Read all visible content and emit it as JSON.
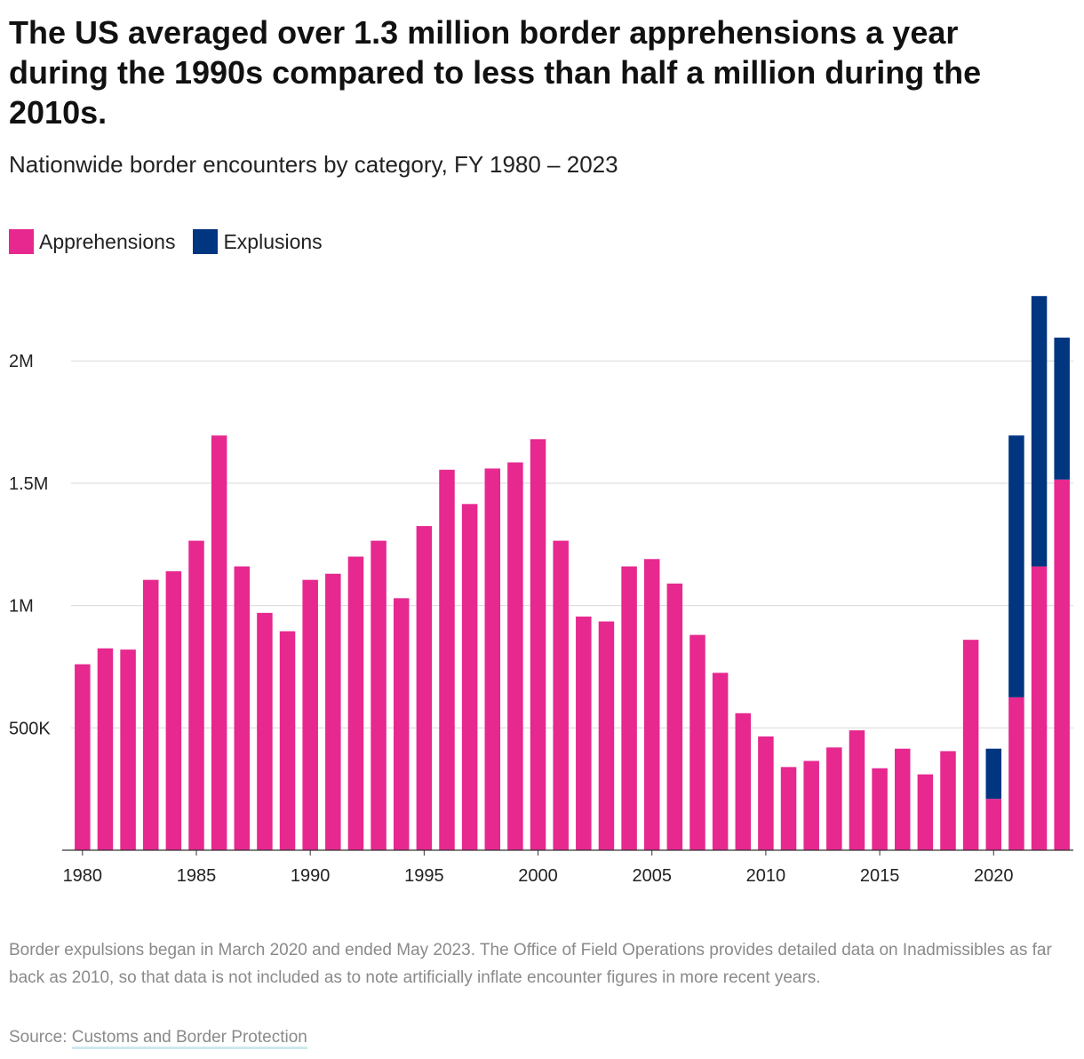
{
  "title": "The US averaged over 1.3 million border apprehensions a year during the 1990s compared to less than half a million during the 2010s.",
  "subtitle": "Nationwide border encounters by category, FY 1980 – 2023",
  "legend": [
    {
      "label": "Apprehensions",
      "color": "#e6288f"
    },
    {
      "label": "Explusions",
      "color": "#003580"
    }
  ],
  "footnote": "Border expulsions began in March 2020 and ended May 2023. The Office of Field Operations provides detailed data on Inadmissibles as far back as 2010, so that data is not included as to note artificially inflate encounter figures in more recent years.",
  "source": {
    "prefix": "Source: ",
    "link_text": "Customs and Border Protection"
  },
  "chart_data": {
    "type": "bar",
    "stacked": true,
    "title": "Nationwide border encounters by category, FY 1980 – 2023",
    "xlabel": "",
    "ylabel": "",
    "ylim": [
      0,
      2300000
    ],
    "yticks": [
      {
        "value": 500000,
        "label": "500K"
      },
      {
        "value": 1000000,
        "label": "1M"
      },
      {
        "value": 1500000,
        "label": "1.5M"
      },
      {
        "value": 2000000,
        "label": "2M"
      }
    ],
    "xticks": [
      "1980",
      "1985",
      "1990",
      "1995",
      "2000",
      "2005",
      "2010",
      "2015",
      "2020"
    ],
    "grid": true,
    "legend_position": "top-left",
    "categories": [
      "1980",
      "1981",
      "1982",
      "1983",
      "1984",
      "1985",
      "1986",
      "1987",
      "1988",
      "1989",
      "1990",
      "1991",
      "1992",
      "1993",
      "1994",
      "1995",
      "1996",
      "1997",
      "1998",
      "1999",
      "2000",
      "2001",
      "2002",
      "2003",
      "2004",
      "2005",
      "2006",
      "2007",
      "2008",
      "2009",
      "2010",
      "2011",
      "2012",
      "2013",
      "2014",
      "2015",
      "2016",
      "2017",
      "2018",
      "2019",
      "2020",
      "2021",
      "2022",
      "2023"
    ],
    "series": [
      {
        "name": "Apprehensions",
        "color": "#e6288f",
        "values": [
          760000,
          825000,
          820000,
          1105000,
          1140000,
          1265000,
          1695000,
          1160000,
          970000,
          895000,
          1105000,
          1130000,
          1200000,
          1265000,
          1030000,
          1325000,
          1555000,
          1415000,
          1560000,
          1585000,
          1680000,
          1265000,
          955000,
          935000,
          1160000,
          1190000,
          1090000,
          880000,
          725000,
          560000,
          465000,
          340000,
          365000,
          420000,
          490000,
          335000,
          415000,
          310000,
          405000,
          860000,
          210000,
          625000,
          1160000,
          1515000
        ]
      },
      {
        "name": "Explusions",
        "color": "#003580",
        "values": [
          0,
          0,
          0,
          0,
          0,
          0,
          0,
          0,
          0,
          0,
          0,
          0,
          0,
          0,
          0,
          0,
          0,
          0,
          0,
          0,
          0,
          0,
          0,
          0,
          0,
          0,
          0,
          0,
          0,
          0,
          0,
          0,
          0,
          0,
          0,
          0,
          0,
          0,
          0,
          0,
          205000,
          1070000,
          1105000,
          580000
        ]
      }
    ]
  }
}
